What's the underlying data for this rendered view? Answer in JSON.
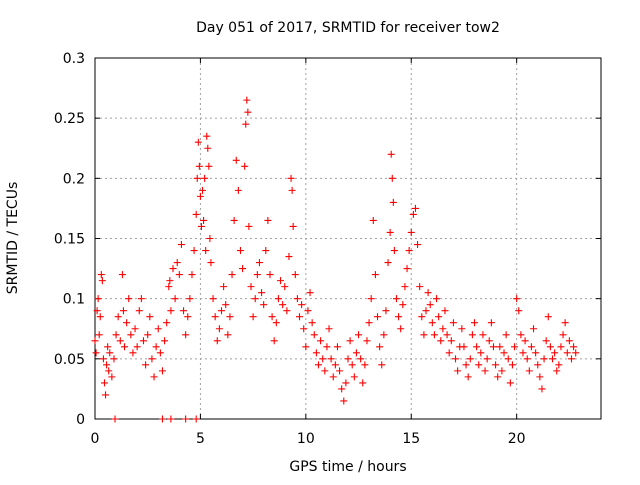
{
  "chart_data": {
    "type": "scatter",
    "title": "Day 051 of 2017, SRMTID for receiver tow2",
    "xlabel": "GPS time / hours",
    "ylabel": "SRMTID / TECUs",
    "xlim": [
      0,
      24
    ],
    "ylim": [
      0,
      0.3
    ],
    "xticks": [
      0,
      5,
      10,
      15,
      20
    ],
    "yticks": [
      0,
      0.05,
      0.1,
      0.15,
      0.2,
      0.25,
      0.3
    ],
    "xtick_labels": [
      "0",
      "5",
      "10",
      "15",
      "20"
    ],
    "ytick_labels": [
      "0",
      "0.05",
      "0.1",
      "0.15",
      "0.2",
      "0.25",
      "0.3"
    ],
    "grid": true,
    "marker": "+",
    "color": "#ff0000",
    "series": [
      {
        "name": "tow2",
        "points": [
          [
            0.0,
            0.065
          ],
          [
            0.05,
            0.055
          ],
          [
            0.1,
            0.09
          ],
          [
            0.15,
            0.1
          ],
          [
            0.2,
            0.07
          ],
          [
            0.25,
            0.085
          ],
          [
            0.3,
            0.12
          ],
          [
            0.35,
            0.115
          ],
          [
            0.4,
            0.05
          ],
          [
            0.45,
            0.03
          ],
          [
            0.5,
            0.02
          ],
          [
            0.55,
            0.045
          ],
          [
            0.6,
            0.06
          ],
          [
            0.65,
            0.04
          ],
          [
            0.7,
            0.055
          ],
          [
            0.8,
            0.035
          ],
          [
            0.9,
            0.05
          ],
          [
            1.0,
            0.07
          ],
          [
            1.1,
            0.085
          ],
          [
            1.2,
            0.065
          ],
          [
            1.3,
            0.12
          ],
          [
            1.35,
            0.09
          ],
          [
            1.4,
            0.06
          ],
          [
            1.5,
            0.08
          ],
          [
            1.6,
            0.1
          ],
          [
            1.7,
            0.07
          ],
          [
            1.8,
            0.055
          ],
          [
            1.9,
            0.075
          ],
          [
            2.0,
            0.06
          ],
          [
            2.1,
            0.09
          ],
          [
            2.2,
            0.1
          ],
          [
            2.3,
            0.065
          ],
          [
            2.4,
            0.045
          ],
          [
            2.5,
            0.07
          ],
          [
            2.6,
            0.085
          ],
          [
            2.7,
            0.05
          ],
          [
            2.8,
            0.035
          ],
          [
            2.9,
            0.06
          ],
          [
            3.0,
            0.075
          ],
          [
            3.1,
            0.055
          ],
          [
            3.2,
            0.04
          ],
          [
            3.3,
            0.065
          ],
          [
            3.4,
            0.08
          ],
          [
            3.5,
            0.11
          ],
          [
            3.55,
            0.115
          ],
          [
            3.6,
            0.09
          ],
          [
            3.7,
            0.125
          ],
          [
            3.8,
            0.1
          ],
          [
            3.9,
            0.13
          ],
          [
            4.0,
            0.12
          ],
          [
            4.1,
            0.145
          ],
          [
            4.2,
            0.09
          ],
          [
            4.3,
            0.07
          ],
          [
            4.4,
            0.085
          ],
          [
            4.5,
            0.1
          ],
          [
            4.6,
            0.12
          ],
          [
            4.7,
            0.14
          ],
          [
            4.8,
            0.17
          ],
          [
            4.85,
            0.2
          ],
          [
            4.9,
            0.23
          ],
          [
            4.95,
            0.21
          ],
          [
            5.0,
            0.185
          ],
          [
            5.05,
            0.16
          ],
          [
            5.1,
            0.19
          ],
          [
            5.15,
            0.165
          ],
          [
            5.2,
            0.2
          ],
          [
            5.25,
            0.14
          ],
          [
            5.3,
            0.235
          ],
          [
            5.35,
            0.225
          ],
          [
            5.4,
            0.21
          ],
          [
            5.45,
            0.15
          ],
          [
            5.5,
            0.13
          ],
          [
            5.6,
            0.1
          ],
          [
            5.7,
            0.085
          ],
          [
            5.8,
            0.065
          ],
          [
            5.9,
            0.075
          ],
          [
            6.0,
            0.09
          ],
          [
            6.1,
            0.11
          ],
          [
            6.2,
            0.095
          ],
          [
            6.3,
            0.07
          ],
          [
            6.4,
            0.085
          ],
          [
            6.5,
            0.12
          ],
          [
            6.6,
            0.165
          ],
          [
            6.7,
            0.215
          ],
          [
            6.8,
            0.19
          ],
          [
            6.9,
            0.14
          ],
          [
            7.0,
            0.125
          ],
          [
            7.1,
            0.21
          ],
          [
            7.15,
            0.245
          ],
          [
            7.2,
            0.265
          ],
          [
            7.25,
            0.255
          ],
          [
            7.3,
            0.16
          ],
          [
            7.4,
            0.11
          ],
          [
            7.5,
            0.085
          ],
          [
            7.6,
            0.1
          ],
          [
            7.7,
            0.12
          ],
          [
            7.8,
            0.13
          ],
          [
            7.9,
            0.105
          ],
          [
            8.0,
            0.095
          ],
          [
            8.1,
            0.14
          ],
          [
            8.2,
            0.165
          ],
          [
            8.3,
            0.12
          ],
          [
            8.4,
            0.085
          ],
          [
            8.5,
            0.065
          ],
          [
            8.6,
            0.08
          ],
          [
            8.7,
            0.1
          ],
          [
            8.8,
            0.115
          ],
          [
            8.9,
            0.095
          ],
          [
            9.0,
            0.11
          ],
          [
            9.1,
            0.09
          ],
          [
            9.2,
            0.135
          ],
          [
            9.3,
            0.2
          ],
          [
            9.35,
            0.19
          ],
          [
            9.4,
            0.16
          ],
          [
            9.5,
            0.12
          ],
          [
            9.6,
            0.1
          ],
          [
            9.7,
            0.085
          ],
          [
            9.8,
            0.095
          ],
          [
            9.9,
            0.075
          ],
          [
            10.0,
            0.06
          ],
          [
            10.1,
            0.09
          ],
          [
            10.2,
            0.105
          ],
          [
            10.3,
            0.08
          ],
          [
            10.4,
            0.07
          ],
          [
            10.5,
            0.055
          ],
          [
            10.6,
            0.045
          ],
          [
            10.7,
            0.065
          ],
          [
            10.8,
            0.05
          ],
          [
            10.9,
            0.04
          ],
          [
            11.0,
            0.06
          ],
          [
            11.1,
            0.075
          ],
          [
            11.2,
            0.05
          ],
          [
            11.3,
            0.035
          ],
          [
            11.4,
            0.045
          ],
          [
            11.5,
            0.06
          ],
          [
            11.6,
            0.04
          ],
          [
            11.7,
            0.025
          ],
          [
            11.8,
            0.015
          ],
          [
            11.9,
            0.03
          ],
          [
            12.0,
            0.05
          ],
          [
            12.1,
            0.065
          ],
          [
            12.2,
            0.045
          ],
          [
            12.3,
            0.035
          ],
          [
            12.4,
            0.055
          ],
          [
            12.5,
            0.07
          ],
          [
            12.6,
            0.05
          ],
          [
            12.7,
            0.03
          ],
          [
            12.8,
            0.045
          ],
          [
            12.9,
            0.065
          ],
          [
            13.0,
            0.08
          ],
          [
            13.1,
            0.1
          ],
          [
            13.2,
            0.165
          ],
          [
            13.3,
            0.12
          ],
          [
            13.4,
            0.085
          ],
          [
            13.5,
            0.06
          ],
          [
            13.6,
            0.045
          ],
          [
            13.7,
            0.07
          ],
          [
            13.8,
            0.09
          ],
          [
            13.9,
            0.13
          ],
          [
            14.0,
            0.155
          ],
          [
            14.05,
            0.22
          ],
          [
            14.1,
            0.2
          ],
          [
            14.15,
            0.18
          ],
          [
            14.2,
            0.14
          ],
          [
            14.3,
            0.1
          ],
          [
            14.4,
            0.085
          ],
          [
            14.5,
            0.075
          ],
          [
            14.6,
            0.095
          ],
          [
            14.7,
            0.11
          ],
          [
            14.8,
            0.125
          ],
          [
            14.9,
            0.14
          ],
          [
            15.0,
            0.155
          ],
          [
            15.1,
            0.17
          ],
          [
            15.2,
            0.175
          ],
          [
            15.3,
            0.145
          ],
          [
            15.4,
            0.11
          ],
          [
            15.5,
            0.085
          ],
          [
            15.6,
            0.07
          ],
          [
            15.7,
            0.09
          ],
          [
            15.8,
            0.105
          ],
          [
            15.9,
            0.095
          ],
          [
            16.0,
            0.08
          ],
          [
            16.1,
            0.07
          ],
          [
            16.2,
            0.1
          ],
          [
            16.3,
            0.085
          ],
          [
            16.4,
            0.065
          ],
          [
            16.5,
            0.075
          ],
          [
            16.6,
            0.09
          ],
          [
            16.7,
            0.07
          ],
          [
            16.8,
            0.055
          ],
          [
            16.9,
            0.065
          ],
          [
            17.0,
            0.08
          ],
          [
            17.1,
            0.05
          ],
          [
            17.2,
            0.04
          ],
          [
            17.3,
            0.06
          ],
          [
            17.4,
            0.075
          ],
          [
            17.5,
            0.06
          ],
          [
            17.6,
            0.045
          ],
          [
            17.7,
            0.035
          ],
          [
            17.8,
            0.05
          ],
          [
            17.9,
            0.07
          ],
          [
            18.0,
            0.08
          ],
          [
            18.1,
            0.06
          ],
          [
            18.2,
            0.045
          ],
          [
            18.3,
            0.055
          ],
          [
            18.4,
            0.07
          ],
          [
            18.5,
            0.04
          ],
          [
            18.6,
            0.05
          ],
          [
            18.7,
            0.065
          ],
          [
            18.8,
            0.08
          ],
          [
            18.9,
            0.06
          ],
          [
            19.0,
            0.045
          ],
          [
            19.1,
            0.035
          ],
          [
            19.2,
            0.06
          ],
          [
            19.3,
            0.04
          ],
          [
            19.4,
            0.055
          ],
          [
            19.5,
            0.07
          ],
          [
            19.6,
            0.05
          ],
          [
            19.7,
            0.03
          ],
          [
            19.8,
            0.045
          ],
          [
            19.9,
            0.06
          ],
          [
            20.0,
            0.1
          ],
          [
            20.1,
            0.09
          ],
          [
            20.2,
            0.07
          ],
          [
            20.3,
            0.055
          ],
          [
            20.4,
            0.065
          ],
          [
            20.5,
            0.05
          ],
          [
            20.6,
            0.04
          ],
          [
            20.7,
            0.06
          ],
          [
            20.8,
            0.075
          ],
          [
            20.9,
            0.055
          ],
          [
            21.0,
            0.045
          ],
          [
            21.1,
            0.035
          ],
          [
            21.2,
            0.025
          ],
          [
            21.3,
            0.05
          ],
          [
            21.4,
            0.065
          ],
          [
            21.5,
            0.085
          ],
          [
            21.6,
            0.06
          ],
          [
            21.7,
            0.05
          ],
          [
            21.8,
            0.055
          ],
          [
            21.9,
            0.04
          ],
          [
            22.0,
            0.045
          ],
          [
            22.1,
            0.06
          ],
          [
            22.2,
            0.07
          ],
          [
            22.3,
            0.08
          ],
          [
            22.4,
            0.055
          ],
          [
            22.5,
            0.065
          ],
          [
            22.6,
            0.05
          ],
          [
            22.7,
            0.06
          ],
          [
            22.8,
            0.055
          ],
          [
            0.95,
            0.0
          ],
          [
            3.2,
            0.0
          ],
          [
            3.6,
            0.0
          ],
          [
            4.3,
            0.0
          ],
          [
            4.8,
            0.0
          ]
        ]
      }
    ]
  }
}
